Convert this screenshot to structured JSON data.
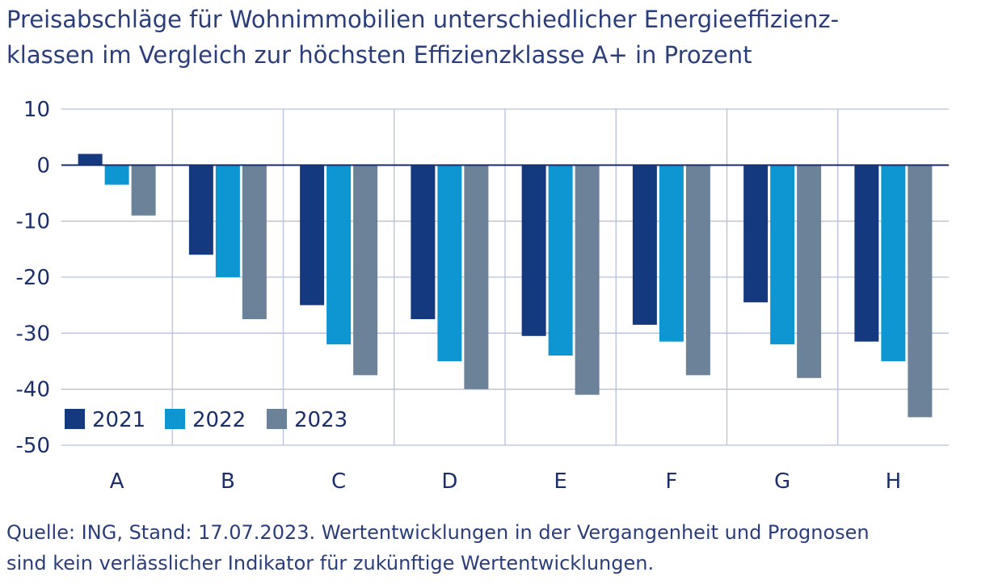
{
  "title_lines": [
    "Preisabschläge für Wohnimmobilien unterschiedlicher Energieeffizienz-",
    "klassen im Vergleich zur höchsten Effizienzklasse A+ in Prozent"
  ],
  "source_lines": [
    "Quelle: ING, Stand: 17.07.2023. Wertentwicklungen in der Vergangenheit und Prognosen",
    "sind kein verlässlicher Indikator für zukünftige Wertentwicklungen."
  ],
  "chart_data": {
    "type": "bar",
    "categories": [
      "A",
      "B",
      "C",
      "D",
      "E",
      "F",
      "G",
      "H"
    ],
    "series": [
      {
        "name": "2021",
        "color": "#15397f",
        "values": [
          2,
          -16,
          -25,
          -27.5,
          -30.5,
          -28.5,
          -24.5,
          -31.5
        ]
      },
      {
        "name": "2022",
        "color": "#0e96d2",
        "values": [
          -3.5,
          -20,
          -32,
          -35,
          -34,
          -31.5,
          -32,
          -35
        ]
      },
      {
        "name": "2023",
        "color": "#6b8299",
        "values": [
          -9,
          -27.5,
          -37.5,
          -40,
          -41,
          -37.5,
          -38,
          -45
        ]
      }
    ],
    "yticks": [
      10,
      0,
      -10,
      -20,
      -30,
      -40,
      -50
    ],
    "ylim": [
      -50,
      10
    ],
    "grid": true,
    "legend_position": "bottom-left"
  }
}
